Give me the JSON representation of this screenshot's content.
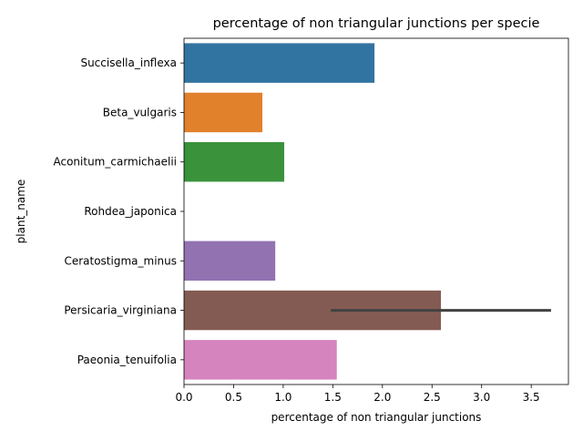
{
  "chart_data": {
    "type": "bar",
    "orientation": "horizontal",
    "title": "percentage of non triangular junctions per specie",
    "xlabel": "percentage of non triangular junctions",
    "ylabel": "plant_name",
    "xlim": [
      0,
      3.875
    ],
    "xticks": [
      0,
      0.5,
      1,
      1.5,
      2,
      2.5,
      3,
      3.5
    ],
    "xtick_labels": [
      "0.0",
      "0.5",
      "1.0",
      "1.5",
      "2.0",
      "2.5",
      "3.0",
      "3.5"
    ],
    "grid": false,
    "categories": [
      "Succisella_inflexa",
      "Beta_vulgaris",
      "Aconitum_carmichaelii",
      "Rohdea_japonica",
      "Ceratostigma_minus",
      "Persicaria_virginiana",
      "Paeonia_tenuifolia"
    ],
    "values": [
      1.92,
      0.79,
      1.01,
      0.0,
      0.92,
      2.59,
      1.54
    ],
    "error_intervals": [
      null,
      null,
      null,
      null,
      null,
      [
        1.48,
        3.7
      ],
      null
    ],
    "colors": [
      "#3274a1",
      "#e1812c",
      "#3a923a",
      "#c03d3e",
      "#9372b2",
      "#845b53",
      "#d684bd"
    ],
    "errorbar_color": "#424242"
  }
}
